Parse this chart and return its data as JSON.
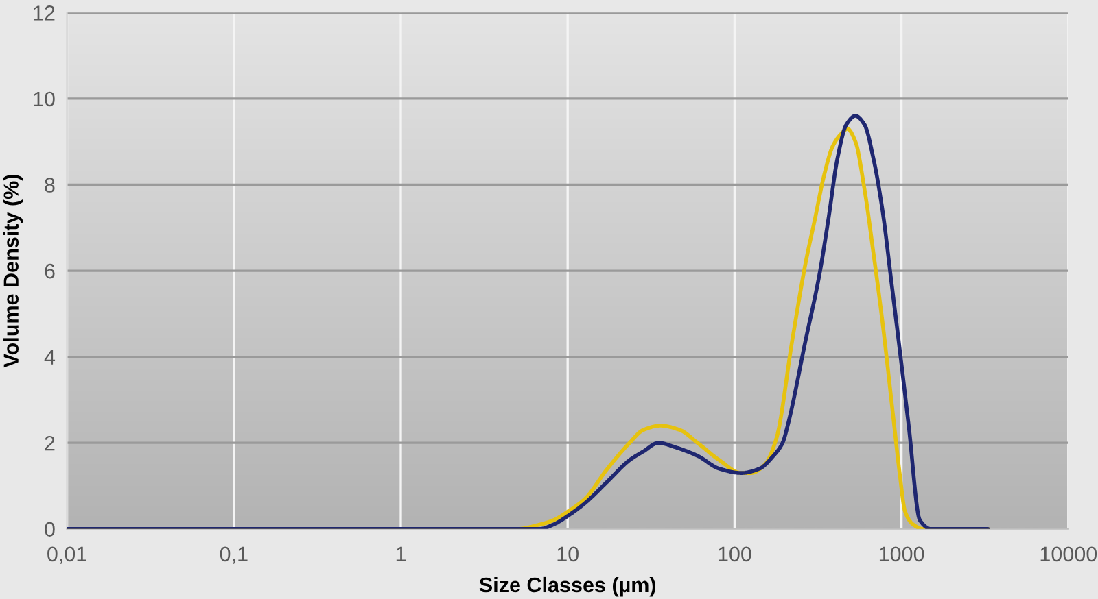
{
  "chart_data": {
    "type": "line",
    "xlabel": "Size Classes (µm)",
    "ylabel": "Volume Density (%)",
    "log": "x",
    "grid": true,
    "xlim": [
      0.01,
      10000
    ],
    "xticks": [
      {
        "value": 0.01,
        "label": "0,01"
      },
      {
        "value": 0.1,
        "label": "0,1"
      },
      1,
      10,
      100,
      1000,
      10000
    ],
    "ylim": [
      0,
      12
    ],
    "yticks": [
      0,
      2,
      4,
      6,
      8,
      10,
      12
    ],
    "series": [
      {
        "color": "#e6c20f",
        "x": [
          0.01,
          5,
          6.8,
          8.2,
          10,
          12.7,
          17.3,
          23.5,
          28.4,
          36,
          47,
          60,
          81,
          110,
          126,
          152,
          178,
          222,
          267,
          303,
          343,
          388,
          440,
          474,
          530,
          600,
          680,
          770,
          899,
          975,
          1052,
          1178,
          1342,
          3300
        ],
        "values": [
          0,
          0,
          0.1,
          0.2,
          0.4,
          0.7,
          1.4,
          2.0,
          2.3,
          2.4,
          2.3,
          2.0,
          1.6,
          1.3,
          1.3,
          1.5,
          2.1,
          4.4,
          6.2,
          7.2,
          8.2,
          8.9,
          9.2,
          9.3,
          9.0,
          7.9,
          6.4,
          4.8,
          2.5,
          1.3,
          0.4,
          0.1,
          0,
          0
        ]
      },
      {
        "color": "#1f2770",
        "x": [
          0.01,
          5,
          6.8,
          8.2,
          10,
          12.7,
          17.3,
          23.5,
          28.4,
          35,
          44,
          60,
          81,
          110,
          141,
          171,
          194,
          208,
          267,
          322,
          365,
          413,
          468,
          530,
          600,
          680,
          770,
          873,
          988,
          1105,
          1290,
          1500,
          3300
        ],
        "values": [
          0,
          0,
          0,
          0.1,
          0.3,
          0.6,
          1.1,
          1.6,
          1.8,
          2.0,
          1.9,
          1.7,
          1.4,
          1.3,
          1.4,
          1.7,
          2.0,
          2.4,
          4.4,
          5.9,
          7.2,
          8.6,
          9.4,
          9.6,
          9.4,
          8.6,
          7.4,
          5.7,
          4.0,
          2.4,
          0.2,
          0,
          0
        ]
      }
    ]
  }
}
